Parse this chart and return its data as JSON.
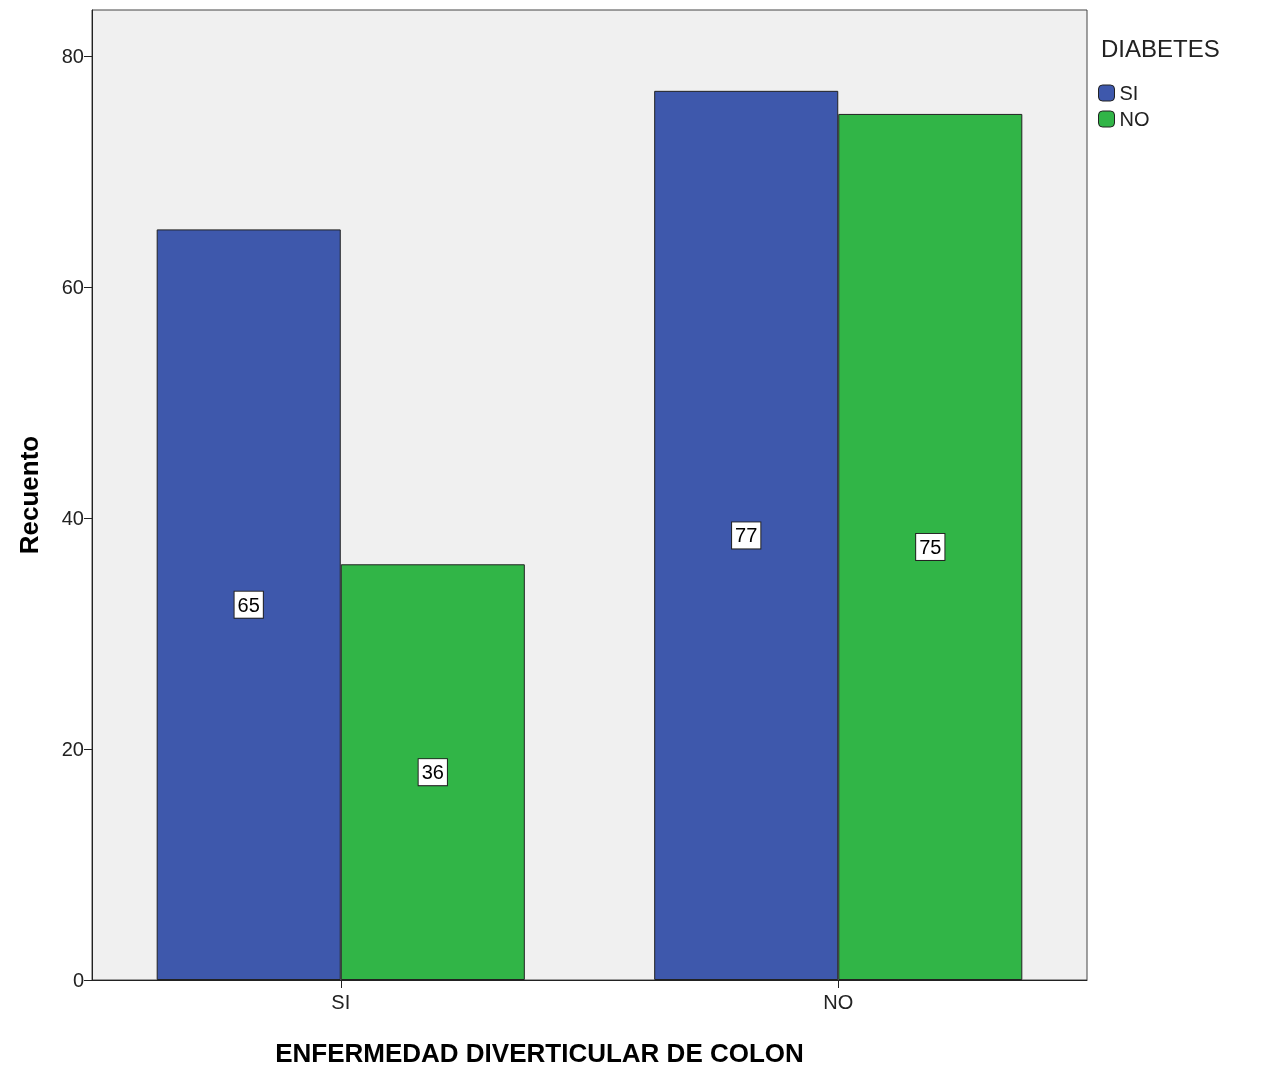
{
  "chart_data": {
    "type": "bar",
    "xlabel": "ENFERMEDAD DIVERTICULAR DE COLON",
    "ylabel": "Recuento",
    "legend_title": "DIABETES",
    "categories": [
      "SI",
      "NO"
    ],
    "series": [
      {
        "name": "SI",
        "color": "#3e58ac",
        "values": [
          65,
          77
        ]
      },
      {
        "name": "NO",
        "color": "#31b547",
        "values": [
          36,
          75
        ]
      }
    ],
    "ylim": [
      0,
      84
    ],
    "yticks": [
      0,
      20,
      40,
      60,
      80
    ],
    "grid": false,
    "legend": "top right",
    "data_labels": true
  }
}
